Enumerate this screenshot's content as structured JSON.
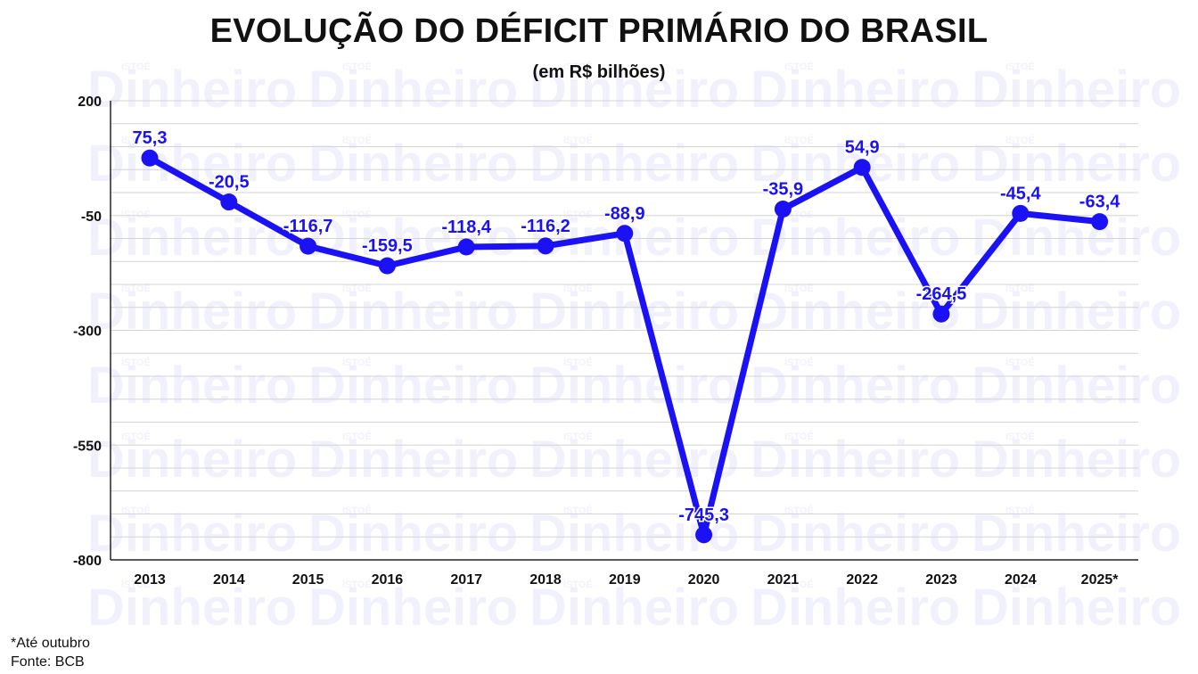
{
  "title": "EVOLUÇÃO DO DÉFICIT PRIMÁRIO DO BRASIL",
  "subtitle": "(em R$ bilhões)",
  "watermark": {
    "brand": "ISTOÉ",
    "name": "Dinheiro"
  },
  "notes": {
    "footnote": "*Até outubro",
    "source": "Fonte: BCB"
  },
  "colors": {
    "series": "#1a12f5",
    "grid": "#d4d4d4",
    "axis": "#222222",
    "text": "#111111"
  },
  "chart_data": {
    "type": "line",
    "title": "EVOLUÇÃO DO DÉFICIT PRIMÁRIO DO BRASIL",
    "subtitle": "(em R$ bilhões)",
    "xlabel": "",
    "ylabel": "",
    "categories": [
      "2013",
      "2014",
      "2015",
      "2016",
      "2017",
      "2018",
      "2019",
      "2020",
      "2021",
      "2022",
      "2023",
      "2024",
      "2025*"
    ],
    "values": [
      75.3,
      -20.5,
      -116.7,
      -159.5,
      -118.4,
      -116.2,
      -88.9,
      -745.3,
      -35.9,
      54.9,
      -264.5,
      -45.4,
      -63.4
    ],
    "data_labels": [
      "75,3",
      "-20,5",
      "-116,7",
      "-159,5",
      "-118,4",
      "-116,2",
      "-88,9",
      "-745,3",
      "-35,9",
      "54,9",
      "-264,5",
      "-45,4",
      "-63,4"
    ],
    "ylim": [
      -800,
      200
    ],
    "yticks": [
      200,
      -50,
      -300,
      -550,
      -800
    ],
    "grid": true,
    "legend": "none"
  }
}
